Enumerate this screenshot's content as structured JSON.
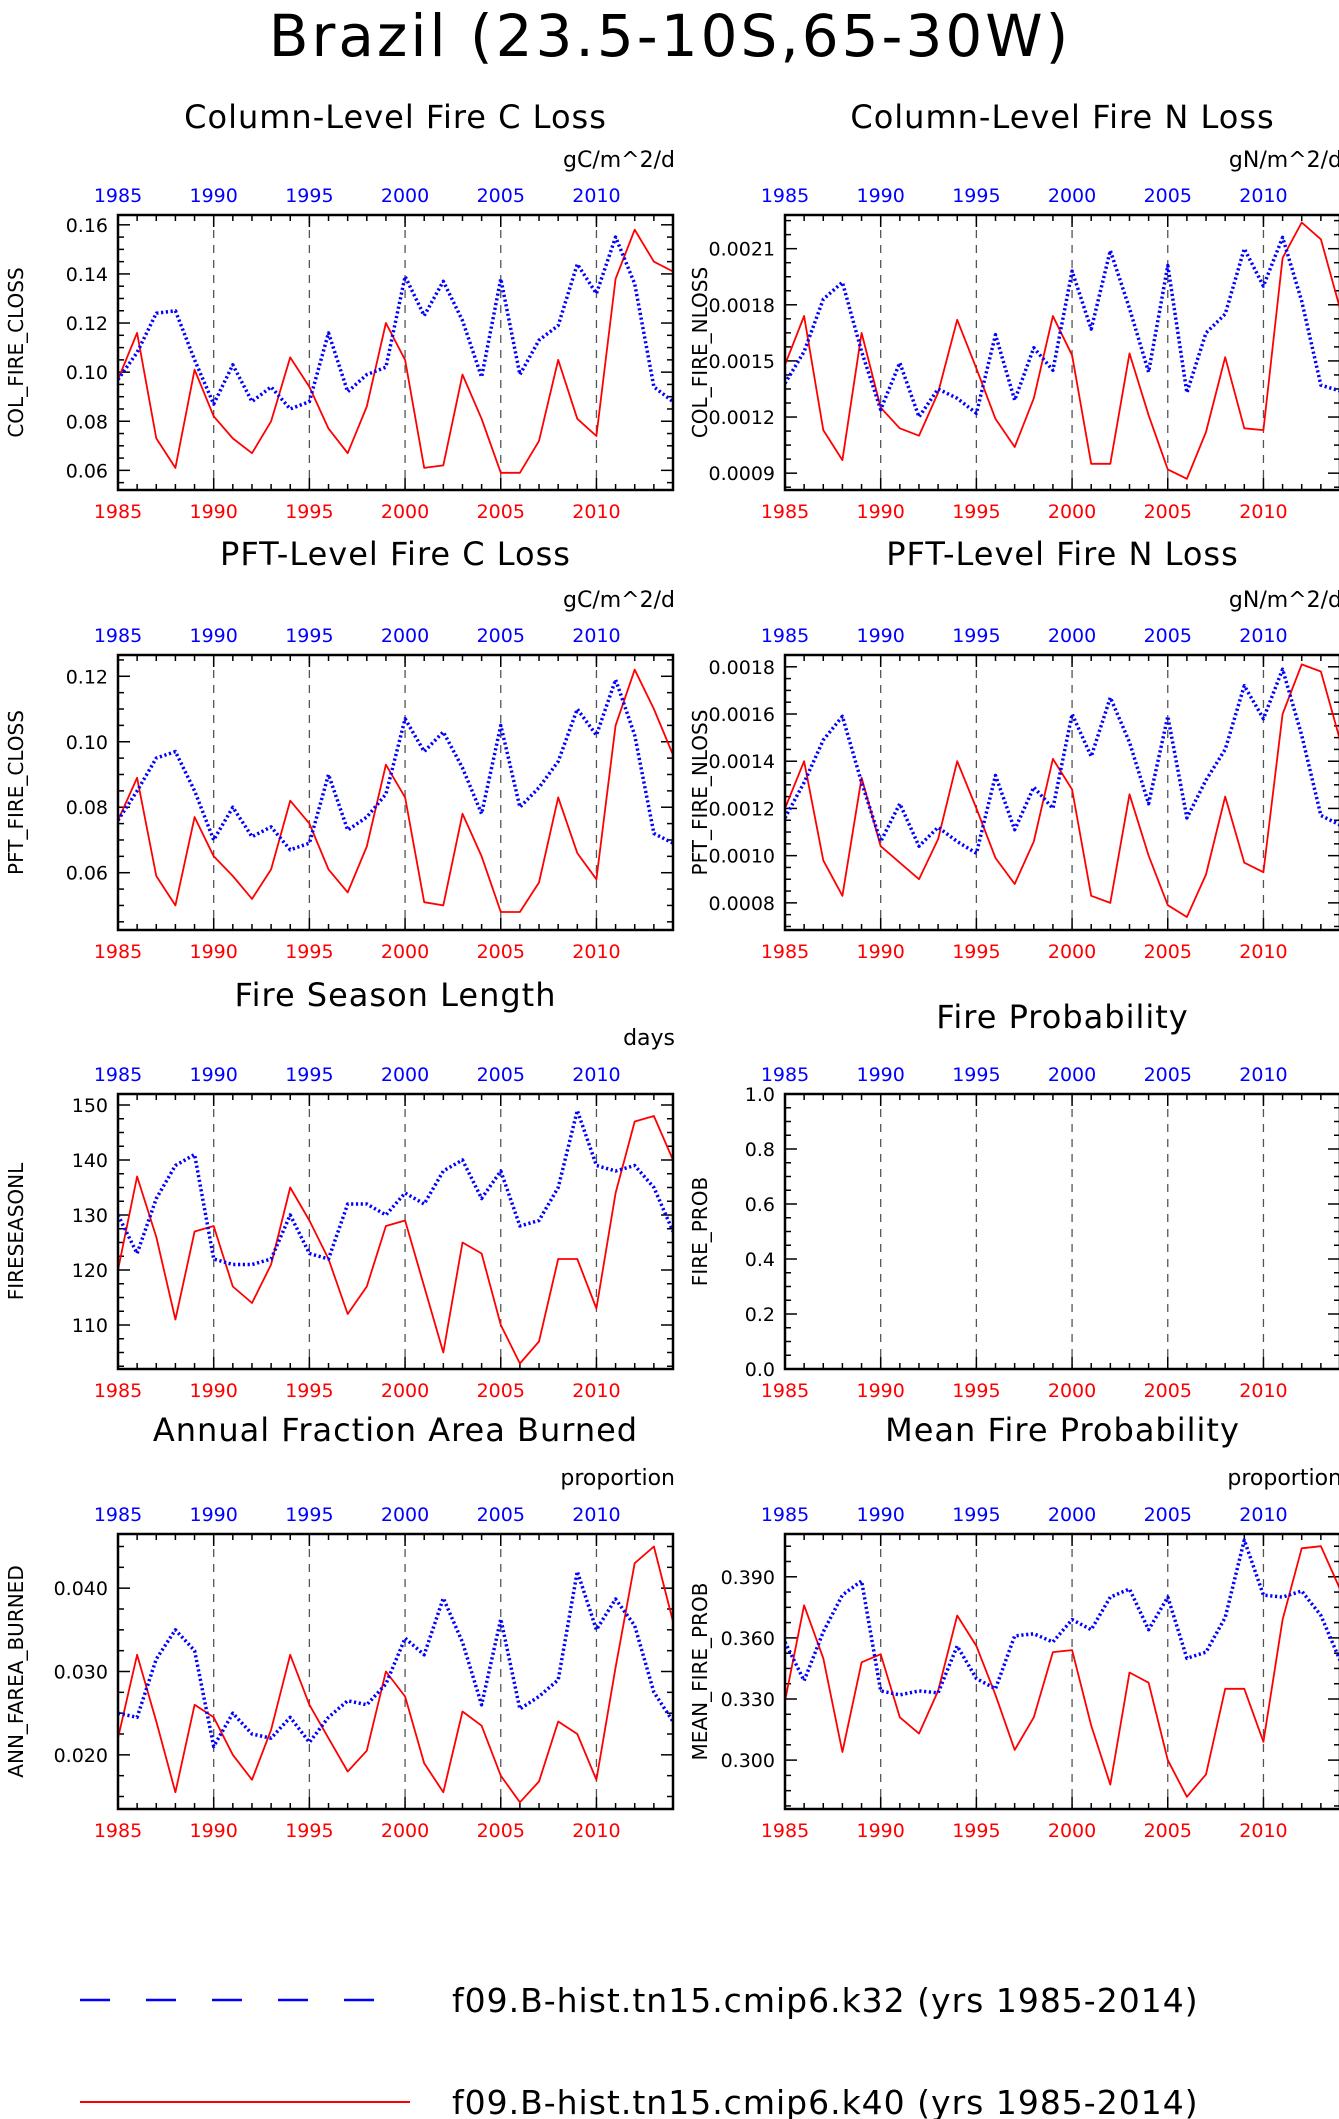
{
  "title": "Brazil (23.5-10S,65-30W)",
  "colors": {
    "k32": "#0000ff",
    "k40": "#ff0000",
    "axis": "#000000",
    "guide": "#555555"
  },
  "legend": {
    "k32": "f09.B-hist.tn15.cmip6.k32 (yrs 1985-2014)",
    "k40": "f09.B-hist.tn15.cmip6.k40 (yrs 1985-2014)"
  },
  "chart_data": [
    {
      "type": "line",
      "title": "Column-Level Fire C Loss",
      "unit": "gC/m^2/d",
      "ylabel": "COL_FIRE_CLOSS",
      "xlim": [
        1985,
        2014
      ],
      "ylim": [
        0.052,
        0.164
      ],
      "yticks": [
        0.06,
        0.08,
        0.1,
        0.12,
        0.14,
        0.16
      ],
      "ytick_labels": [
        "0.06",
        "0.08",
        "0.10",
        "0.12",
        "0.14",
        "0.16"
      ],
      "xticks": [
        1985,
        1990,
        1995,
        2000,
        2005,
        2010
      ],
      "x": [
        1985,
        1986,
        1987,
        1988,
        1989,
        1990,
        1991,
        1992,
        1993,
        1994,
        1995,
        1996,
        1997,
        1998,
        1999,
        2000,
        2001,
        2002,
        2003,
        2004,
        2005,
        2006,
        2007,
        2008,
        2009,
        2010,
        2011,
        2012,
        2013,
        2014
      ],
      "series": [
        {
          "name": "f09.B-hist.tn15.cmip6.k32 (yrs 1985-2014)",
          "style": "dotted",
          "values": [
            0.097,
            0.108,
            0.124,
            0.125,
            0.105,
            0.087,
            0.103,
            0.088,
            0.094,
            0.085,
            0.088,
            0.116,
            0.092,
            0.099,
            0.102,
            0.139,
            0.123,
            0.137,
            0.121,
            0.098,
            0.138,
            0.099,
            0.113,
            0.119,
            0.144,
            0.132,
            0.155,
            0.136,
            0.094,
            0.088
          ]
        },
        {
          "name": "f09.B-hist.tn15.cmip6.k40 (yrs 1985-2014)",
          "style": "solid",
          "values": [
            0.097,
            0.116,
            0.073,
            0.061,
            0.101,
            0.082,
            0.073,
            0.067,
            0.08,
            0.106,
            0.094,
            0.077,
            0.067,
            0.086,
            0.12,
            0.105,
            0.061,
            0.062,
            0.099,
            0.081,
            0.059,
            0.059,
            0.072,
            0.105,
            0.081,
            0.074,
            0.138,
            0.158,
            0.145,
            0.141
          ]
        }
      ]
    },
    {
      "type": "line",
      "title": "Column-Level Fire N Loss",
      "unit": "gN/m^2/d",
      "ylabel": "COL_FIRE_NLOSS",
      "xlim": [
        1985,
        2014
      ],
      "ylim": [
        0.00081,
        0.00228
      ],
      "yticks": [
        0.0009,
        0.0012,
        0.0015,
        0.0018,
        0.0021
      ],
      "ytick_labels": [
        "0.0009",
        "0.0012",
        "0.0015",
        "0.0018",
        "0.0021"
      ],
      "xticks": [
        1985,
        1990,
        1995,
        2000,
        2005,
        2010
      ],
      "x": [
        1985,
        1986,
        1987,
        1988,
        1989,
        1990,
        1991,
        1992,
        1993,
        1994,
        1995,
        1996,
        1997,
        1998,
        1999,
        2000,
        2001,
        2002,
        2003,
        2004,
        2005,
        2006,
        2007,
        2008,
        2009,
        2010,
        2011,
        2012,
        2013,
        2014
      ],
      "series": [
        {
          "name": "f09.B-hist.tn15.cmip6.k32 (yrs 1985-2014)",
          "style": "dotted",
          "values": [
            0.00138,
            0.00155,
            0.00183,
            0.00192,
            0.00155,
            0.00124,
            0.00149,
            0.0012,
            0.00135,
            0.0013,
            0.00122,
            0.00164,
            0.00129,
            0.00157,
            0.00145,
            0.00198,
            0.00167,
            0.00209,
            0.00178,
            0.00144,
            0.00201,
            0.00133,
            0.00165,
            0.00175,
            0.0021,
            0.0019,
            0.00216,
            0.00182,
            0.00137,
            0.00134
          ]
        },
        {
          "name": "f09.B-hist.tn15.cmip6.k40 (yrs 1985-2014)",
          "style": "solid",
          "values": [
            0.00148,
            0.00174,
            0.00113,
            0.00097,
            0.00165,
            0.00125,
            0.00114,
            0.0011,
            0.00133,
            0.00172,
            0.00146,
            0.00119,
            0.00104,
            0.0013,
            0.00174,
            0.00153,
            0.00095,
            0.00095,
            0.00154,
            0.00121,
            0.00092,
            0.00087,
            0.00112,
            0.00152,
            0.00114,
            0.00113,
            0.00205,
            0.00224,
            0.00215,
            0.00178
          ]
        }
      ]
    },
    {
      "type": "line",
      "title": "PFT-Level Fire C Loss",
      "unit": "gC/m^2/d",
      "ylabel": "PFT_FIRE_CLOSS",
      "xlim": [
        1985,
        2014
      ],
      "ylim": [
        0.0425,
        0.1265
      ],
      "yticks": [
        0.06,
        0.08,
        0.1,
        0.12
      ],
      "ytick_labels": [
        "0.06",
        "0.08",
        "0.10",
        "0.12"
      ],
      "xticks": [
        1985,
        1990,
        1995,
        2000,
        2005,
        2010
      ],
      "x": [
        1985,
        1986,
        1987,
        1988,
        1989,
        1990,
        1991,
        1992,
        1993,
        1994,
        1995,
        1996,
        1997,
        1998,
        1999,
        2000,
        2001,
        2002,
        2003,
        2004,
        2005,
        2006,
        2007,
        2008,
        2009,
        2010,
        2011,
        2012,
        2013,
        2014
      ],
      "series": [
        {
          "name": "f09.B-hist.tn15.cmip6.k32 (yrs 1985-2014)",
          "style": "dotted",
          "values": [
            0.076,
            0.085,
            0.095,
            0.097,
            0.085,
            0.07,
            0.08,
            0.071,
            0.074,
            0.067,
            0.069,
            0.09,
            0.073,
            0.077,
            0.084,
            0.107,
            0.097,
            0.103,
            0.092,
            0.078,
            0.105,
            0.08,
            0.086,
            0.094,
            0.11,
            0.102,
            0.119,
            0.102,
            0.072,
            0.069
          ]
        },
        {
          "name": "f09.B-hist.tn15.cmip6.k40 (yrs 1985-2014)",
          "style": "solid",
          "values": [
            0.076,
            0.089,
            0.059,
            0.05,
            0.077,
            0.065,
            0.059,
            0.052,
            0.061,
            0.082,
            0.075,
            0.061,
            0.054,
            0.068,
            0.093,
            0.083,
            0.051,
            0.05,
            0.078,
            0.065,
            0.048,
            0.048,
            0.057,
            0.083,
            0.066,
            0.058,
            0.105,
            0.122,
            0.11,
            0.096
          ]
        }
      ]
    },
    {
      "type": "line",
      "title": "PFT-Level Fire N Loss",
      "unit": "gN/m^2/d",
      "ylabel": "PFT_FIRE_NLOSS",
      "xlim": [
        1985,
        2014
      ],
      "ylim": [
        0.000685,
        0.00185
      ],
      "yticks": [
        0.0008,
        0.001,
        0.0012,
        0.0014,
        0.0016,
        0.0018
      ],
      "ytick_labels": [
        "0.0008",
        "0.0010",
        "0.0012",
        "0.0014",
        "0.0016",
        "0.0018"
      ],
      "xticks": [
        1985,
        1990,
        1995,
        2000,
        2005,
        2010
      ],
      "x": [
        1985,
        1986,
        1987,
        1988,
        1989,
        1990,
        1991,
        1992,
        1993,
        1994,
        1995,
        1996,
        1997,
        1998,
        1999,
        2000,
        2001,
        2002,
        2003,
        2004,
        2005,
        2006,
        2007,
        2008,
        2009,
        2010,
        2011,
        2012,
        2013,
        2014
      ],
      "series": [
        {
          "name": "f09.B-hist.tn15.cmip6.k32 (yrs 1985-2014)",
          "style": "dotted",
          "values": [
            0.00116,
            0.00131,
            0.00149,
            0.00159,
            0.00131,
            0.00106,
            0.00122,
            0.00104,
            0.00112,
            0.00106,
            0.00101,
            0.00134,
            0.00111,
            0.00129,
            0.0012,
            0.0016,
            0.00142,
            0.00167,
            0.00148,
            0.00122,
            0.00159,
            0.00116,
            0.00132,
            0.00145,
            0.00172,
            0.00158,
            0.00179,
            0.00151,
            0.00117,
            0.00113
          ]
        },
        {
          "name": "f09.B-hist.tn15.cmip6.k40 (yrs 1985-2014)",
          "style": "solid",
          "values": [
            0.0012,
            0.0014,
            0.00098,
            0.00083,
            0.00133,
            0.00104,
            0.00097,
            0.0009,
            0.00107,
            0.0014,
            0.0012,
            0.00099,
            0.00088,
            0.00106,
            0.00141,
            0.00128,
            0.00083,
            0.0008,
            0.00126,
            0.001,
            0.00079,
            0.00074,
            0.00092,
            0.00125,
            0.00097,
            0.00093,
            0.0016,
            0.00181,
            0.00178,
            0.00149
          ]
        }
      ]
    },
    {
      "type": "line",
      "title": "Fire Season Length",
      "unit": "days",
      "ylabel": "FIRESEASONL",
      "xlim": [
        1985,
        2014
      ],
      "ylim": [
        102,
        152
      ],
      "yticks": [
        110,
        120,
        130,
        140,
        150
      ],
      "ytick_labels": [
        "110",
        "120",
        "130",
        "140",
        "150"
      ],
      "xticks": [
        1985,
        1990,
        1995,
        2000,
        2005,
        2010
      ],
      "x": [
        1985,
        1986,
        1987,
        1988,
        1989,
        1990,
        1991,
        1992,
        1993,
        1994,
        1995,
        1996,
        1997,
        1998,
        1999,
        2000,
        2001,
        2002,
        2003,
        2004,
        2005,
        2006,
        2007,
        2008,
        2009,
        2010,
        2011,
        2012,
        2013,
        2014
      ],
      "series": [
        {
          "name": "f09.B-hist.tn15.cmip6.k32 (yrs 1985-2014)",
          "style": "dotted",
          "values": [
            130,
            123,
            133,
            139,
            141,
            122,
            121,
            121,
            122,
            130,
            123,
            122,
            132,
            132,
            130,
            134,
            132,
            138,
            140,
            133,
            138,
            128,
            129,
            135,
            149,
            139,
            138,
            139,
            135,
            127
          ]
        },
        {
          "name": "f09.B-hist.tn15.cmip6.k40 (yrs 1985-2014)",
          "style": "solid",
          "values": [
            120,
            137,
            126,
            111,
            127,
            128,
            117,
            114,
            121,
            135,
            129,
            122,
            112,
            117,
            128,
            129,
            117,
            105,
            125,
            123,
            110,
            103,
            107,
            122,
            122,
            113,
            134,
            147,
            148,
            140
          ]
        }
      ]
    },
    {
      "type": "line",
      "title": "Fire Probability",
      "unit": "",
      "ylabel": "FIRE_PROB",
      "xlim": [
        1985,
        2014
      ],
      "ylim": [
        0,
        1
      ],
      "yticks": [
        0.0,
        0.2,
        0.4,
        0.6,
        0.8,
        1.0
      ],
      "ytick_labels": [
        "0.0",
        "0.2",
        "0.4",
        "0.6",
        "0.8",
        "1.0"
      ],
      "xticks": [
        1985,
        1990,
        1995,
        2000,
        2005,
        2010
      ],
      "x": [],
      "series": []
    },
    {
      "type": "line",
      "title": "Annual Fraction Area Burned",
      "unit": "proportion",
      "ylabel": "ANN_FAREA_BURNED",
      "xlim": [
        1985,
        2014
      ],
      "ylim": [
        0.0135,
        0.0465
      ],
      "yticks": [
        0.02,
        0.03,
        0.04
      ],
      "ytick_labels": [
        "0.020",
        "0.030",
        "0.040"
      ],
      "xticks": [
        1985,
        1990,
        1995,
        2000,
        2005,
        2010
      ],
      "x": [
        1985,
        1986,
        1987,
        1988,
        1989,
        1990,
        1991,
        1992,
        1993,
        1994,
        1995,
        1996,
        1997,
        1998,
        1999,
        2000,
        2001,
        2002,
        2003,
        2004,
        2005,
        2006,
        2007,
        2008,
        2009,
        2010,
        2011,
        2012,
        2013,
        2014
      ],
      "series": [
        {
          "name": "f09.B-hist.tn15.cmip6.k32 (yrs 1985-2014)",
          "style": "dotted",
          "values": [
            0.025,
            0.0245,
            0.0315,
            0.035,
            0.0325,
            0.021,
            0.025,
            0.0225,
            0.022,
            0.0245,
            0.0215,
            0.0245,
            0.0265,
            0.026,
            0.0285,
            0.034,
            0.032,
            0.0388,
            0.0335,
            0.026,
            0.0363,
            0.0255,
            0.027,
            0.029,
            0.042,
            0.035,
            0.0387,
            0.0355,
            0.0275,
            0.024
          ]
        },
        {
          "name": "f09.B-hist.tn15.cmip6.k40 (yrs 1985-2014)",
          "style": "solid",
          "values": [
            0.022,
            0.032,
            0.024,
            0.0155,
            0.026,
            0.0245,
            0.02,
            0.017,
            0.023,
            0.032,
            0.026,
            0.022,
            0.018,
            0.0205,
            0.03,
            0.027,
            0.019,
            0.0155,
            0.0252,
            0.0235,
            0.0175,
            0.0143,
            0.0168,
            0.024,
            0.0225,
            0.017,
            0.0305,
            0.043,
            0.045,
            0.036
          ]
        }
      ]
    },
    {
      "type": "line",
      "title": "Mean Fire Probability",
      "unit": "proportion",
      "ylabel": "MEAN_FIRE_PROB",
      "xlim": [
        1985,
        2014
      ],
      "ylim": [
        0.276,
        0.411
      ],
      "yticks": [
        0.3,
        0.33,
        0.36,
        0.39
      ],
      "ytick_labels": [
        "0.300",
        "0.330",
        "0.360",
        "0.390"
      ],
      "xticks": [
        1985,
        1990,
        1995,
        2000,
        2005,
        2010
      ],
      "x": [
        1985,
        1986,
        1987,
        1988,
        1989,
        1990,
        1991,
        1992,
        1993,
        1994,
        1995,
        1996,
        1997,
        1998,
        1999,
        2000,
        2001,
        2002,
        2003,
        2004,
        2005,
        2006,
        2007,
        2008,
        2009,
        2010,
        2011,
        2012,
        2013,
        2014
      ],
      "series": [
        {
          "name": "f09.B-hist.tn15.cmip6.k32 (yrs 1985-2014)",
          "style": "dotted",
          "values": [
            0.358,
            0.339,
            0.363,
            0.381,
            0.388,
            0.334,
            0.332,
            0.334,
            0.333,
            0.356,
            0.34,
            0.335,
            0.361,
            0.362,
            0.358,
            0.369,
            0.364,
            0.38,
            0.384,
            0.364,
            0.38,
            0.35,
            0.353,
            0.37,
            0.408,
            0.381,
            0.38,
            0.383,
            0.371,
            0.349
          ]
        },
        {
          "name": "f09.B-hist.tn15.cmip6.k40 (yrs 1985-2014)",
          "style": "solid",
          "values": [
            0.329,
            0.376,
            0.35,
            0.304,
            0.348,
            0.352,
            0.321,
            0.313,
            0.334,
            0.371,
            0.356,
            0.332,
            0.305,
            0.321,
            0.353,
            0.354,
            0.317,
            0.288,
            0.343,
            0.338,
            0.3,
            0.282,
            0.293,
            0.335,
            0.335,
            0.309,
            0.369,
            0.404,
            0.405,
            0.384
          ]
        }
      ]
    }
  ]
}
